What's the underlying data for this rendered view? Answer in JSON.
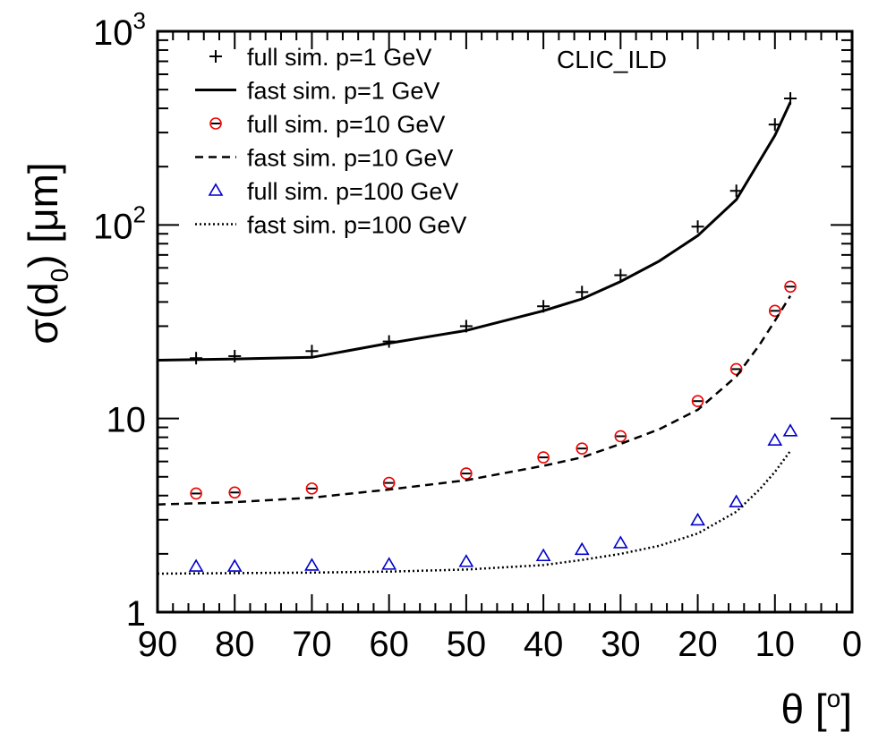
{
  "chart_data": {
    "type": "scatter",
    "ylog": true,
    "xlim": [
      90,
      0
    ],
    "ylim": [
      1,
      1000
    ],
    "xlabel": {
      "main": "θ [",
      "sup": "o",
      "tail": "]"
    },
    "ylabel": {
      "main": "σ(d",
      "sub": "0",
      "tail": ") [μm]"
    },
    "annotation": "CLIC_ILD",
    "x_ticks": [
      {
        "value": 90,
        "label": "90"
      },
      {
        "value": 80,
        "label": "80"
      },
      {
        "value": 70,
        "label": "70"
      },
      {
        "value": 60,
        "label": "60"
      },
      {
        "value": 50,
        "label": "50"
      },
      {
        "value": 40,
        "label": "40"
      },
      {
        "value": 30,
        "label": "30"
      },
      {
        "value": 20,
        "label": "20"
      },
      {
        "value": 10,
        "label": "10"
      },
      {
        "value": 0,
        "label": "0"
      }
    ],
    "y_ticks": [
      {
        "value": 1,
        "label": "1"
      },
      {
        "value": 10,
        "label": "10"
      },
      {
        "value": 100,
        "label": "10",
        "sup": "2"
      },
      {
        "value": 1000,
        "label": "10",
        "sup": "3"
      }
    ],
    "legend": {
      "placement": "top-left",
      "entries": [
        {
          "label": "full sim. p=1 GeV",
          "marker": "plus",
          "color": "#000000"
        },
        {
          "label": "fast sim. p=1 GeV",
          "line": "solid",
          "color": "#000000"
        },
        {
          "label": "full sim. p=10 GeV",
          "marker": "circle",
          "color": "#ee0000"
        },
        {
          "label": "fast sim. p=10 GeV",
          "line": "dashed",
          "color": "#000000"
        },
        {
          "label": "full sim. p=100 GeV",
          "marker": "triangle",
          "color": "#0000cc"
        },
        {
          "label": "fast sim. p=100 GeV",
          "line": "dotted",
          "color": "#000000"
        }
      ]
    },
    "series": [
      {
        "name": "full sim. p=1 GeV",
        "kind": "points",
        "marker": "plus",
        "color": "#000000",
        "x": [
          85,
          80,
          70,
          60,
          50,
          40,
          35,
          30,
          20,
          15,
          10,
          8
        ],
        "y": [
          20.5,
          21,
          22.3,
          25,
          30,
          38,
          45,
          55,
          98,
          150,
          330,
          450
        ]
      },
      {
        "name": "fast sim. p=1 GeV",
        "kind": "line",
        "dash": "solid",
        "color": "#000000",
        "x": [
          90,
          80,
          70,
          60,
          50,
          40,
          35,
          30,
          25,
          20,
          15,
          10,
          8
        ],
        "y": [
          20,
          20.3,
          20.7,
          24.5,
          28.5,
          36,
          41.5,
          51,
          65,
          88,
          135,
          290,
          430
        ]
      },
      {
        "name": "full sim. p=10 GeV",
        "kind": "points",
        "marker": "circle",
        "color": "#ee0000",
        "x": [
          85,
          80,
          70,
          60,
          50,
          40,
          35,
          30,
          20,
          15,
          10,
          8
        ],
        "y": [
          4.1,
          4.15,
          4.35,
          4.65,
          5.2,
          6.3,
          7,
          8.1,
          12.3,
          18,
          36,
          48
        ]
      },
      {
        "name": "fast sim. p=10 GeV",
        "kind": "line",
        "dash": "dashed",
        "color": "#000000",
        "x": [
          90,
          80,
          70,
          60,
          50,
          40,
          35,
          30,
          25,
          20,
          15,
          12,
          10,
          8
        ],
        "y": [
          3.6,
          3.7,
          3.9,
          4.3,
          4.8,
          5.7,
          6.3,
          7.4,
          8.8,
          11.1,
          16.5,
          24,
          32,
          43
        ]
      },
      {
        "name": "full sim. p=100 GeV",
        "kind": "points",
        "marker": "triangle",
        "color": "#0000cc",
        "x": [
          85,
          80,
          70,
          60,
          50,
          40,
          35,
          30,
          20,
          15,
          10,
          8
        ],
        "y": [
          1.72,
          1.72,
          1.74,
          1.76,
          1.82,
          1.95,
          2.1,
          2.27,
          2.98,
          3.7,
          7.7,
          8.6
        ]
      },
      {
        "name": "fast sim. p=100 GeV",
        "kind": "line",
        "dash": "dotted",
        "color": "#000000",
        "x": [
          90,
          80,
          70,
          60,
          50,
          40,
          35,
          30,
          25,
          20,
          15,
          12,
          10,
          8
        ],
        "y": [
          1.58,
          1.59,
          1.6,
          1.62,
          1.66,
          1.75,
          1.86,
          2.0,
          2.2,
          2.55,
          3.3,
          4.3,
          5.3,
          6.8
        ]
      }
    ]
  }
}
